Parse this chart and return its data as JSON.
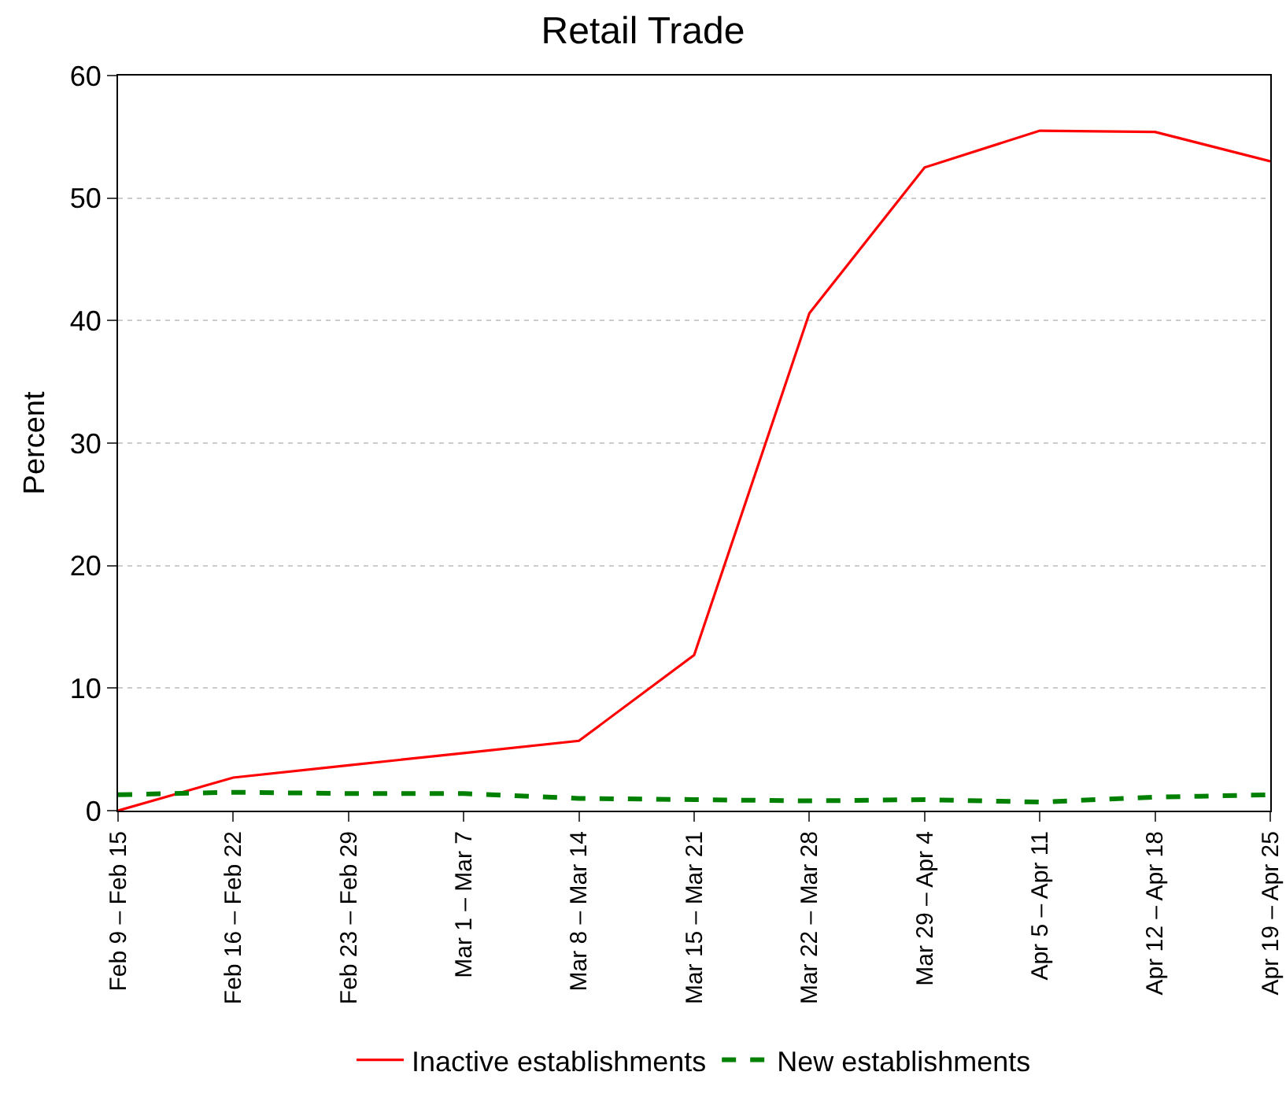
{
  "chart_data": {
    "type": "line",
    "title": "Retail Trade",
    "ylabel": "Percent",
    "categories": [
      "Feb 9 – Feb 15",
      "Feb 16 – Feb 22",
      "Feb 23 – Feb 29",
      "Mar 1 – Mar 7",
      "Mar 8 – Mar 14",
      "Mar 15 – Mar 21",
      "Mar 22 – Mar 28",
      "Mar 29 – Apr 4",
      "Apr 5 – Apr 11",
      "Apr 12 – Apr 18",
      "Apr 19 – Apr 25"
    ],
    "series": [
      {
        "name": "Inactive establishments",
        "color": "#ff0000",
        "line_style": "solid",
        "values": [
          0,
          2.7,
          3.7,
          4.7,
          5.7,
          12.7,
          40.6,
          52.5,
          55.5,
          55.4,
          53.0
        ]
      },
      {
        "name": "New establishments",
        "color": "#008000",
        "line_style": "dashed",
        "values": [
          1.3,
          1.5,
          1.4,
          1.4,
          1.0,
          0.9,
          0.8,
          0.9,
          0.7,
          1.1,
          1.3
        ]
      }
    ],
    "ylim": [
      0,
      60
    ],
    "yticks": [
      0,
      10,
      20,
      30,
      40,
      50,
      60
    ],
    "grid": "y",
    "legend": "bottom",
    "marker": "none"
  }
}
